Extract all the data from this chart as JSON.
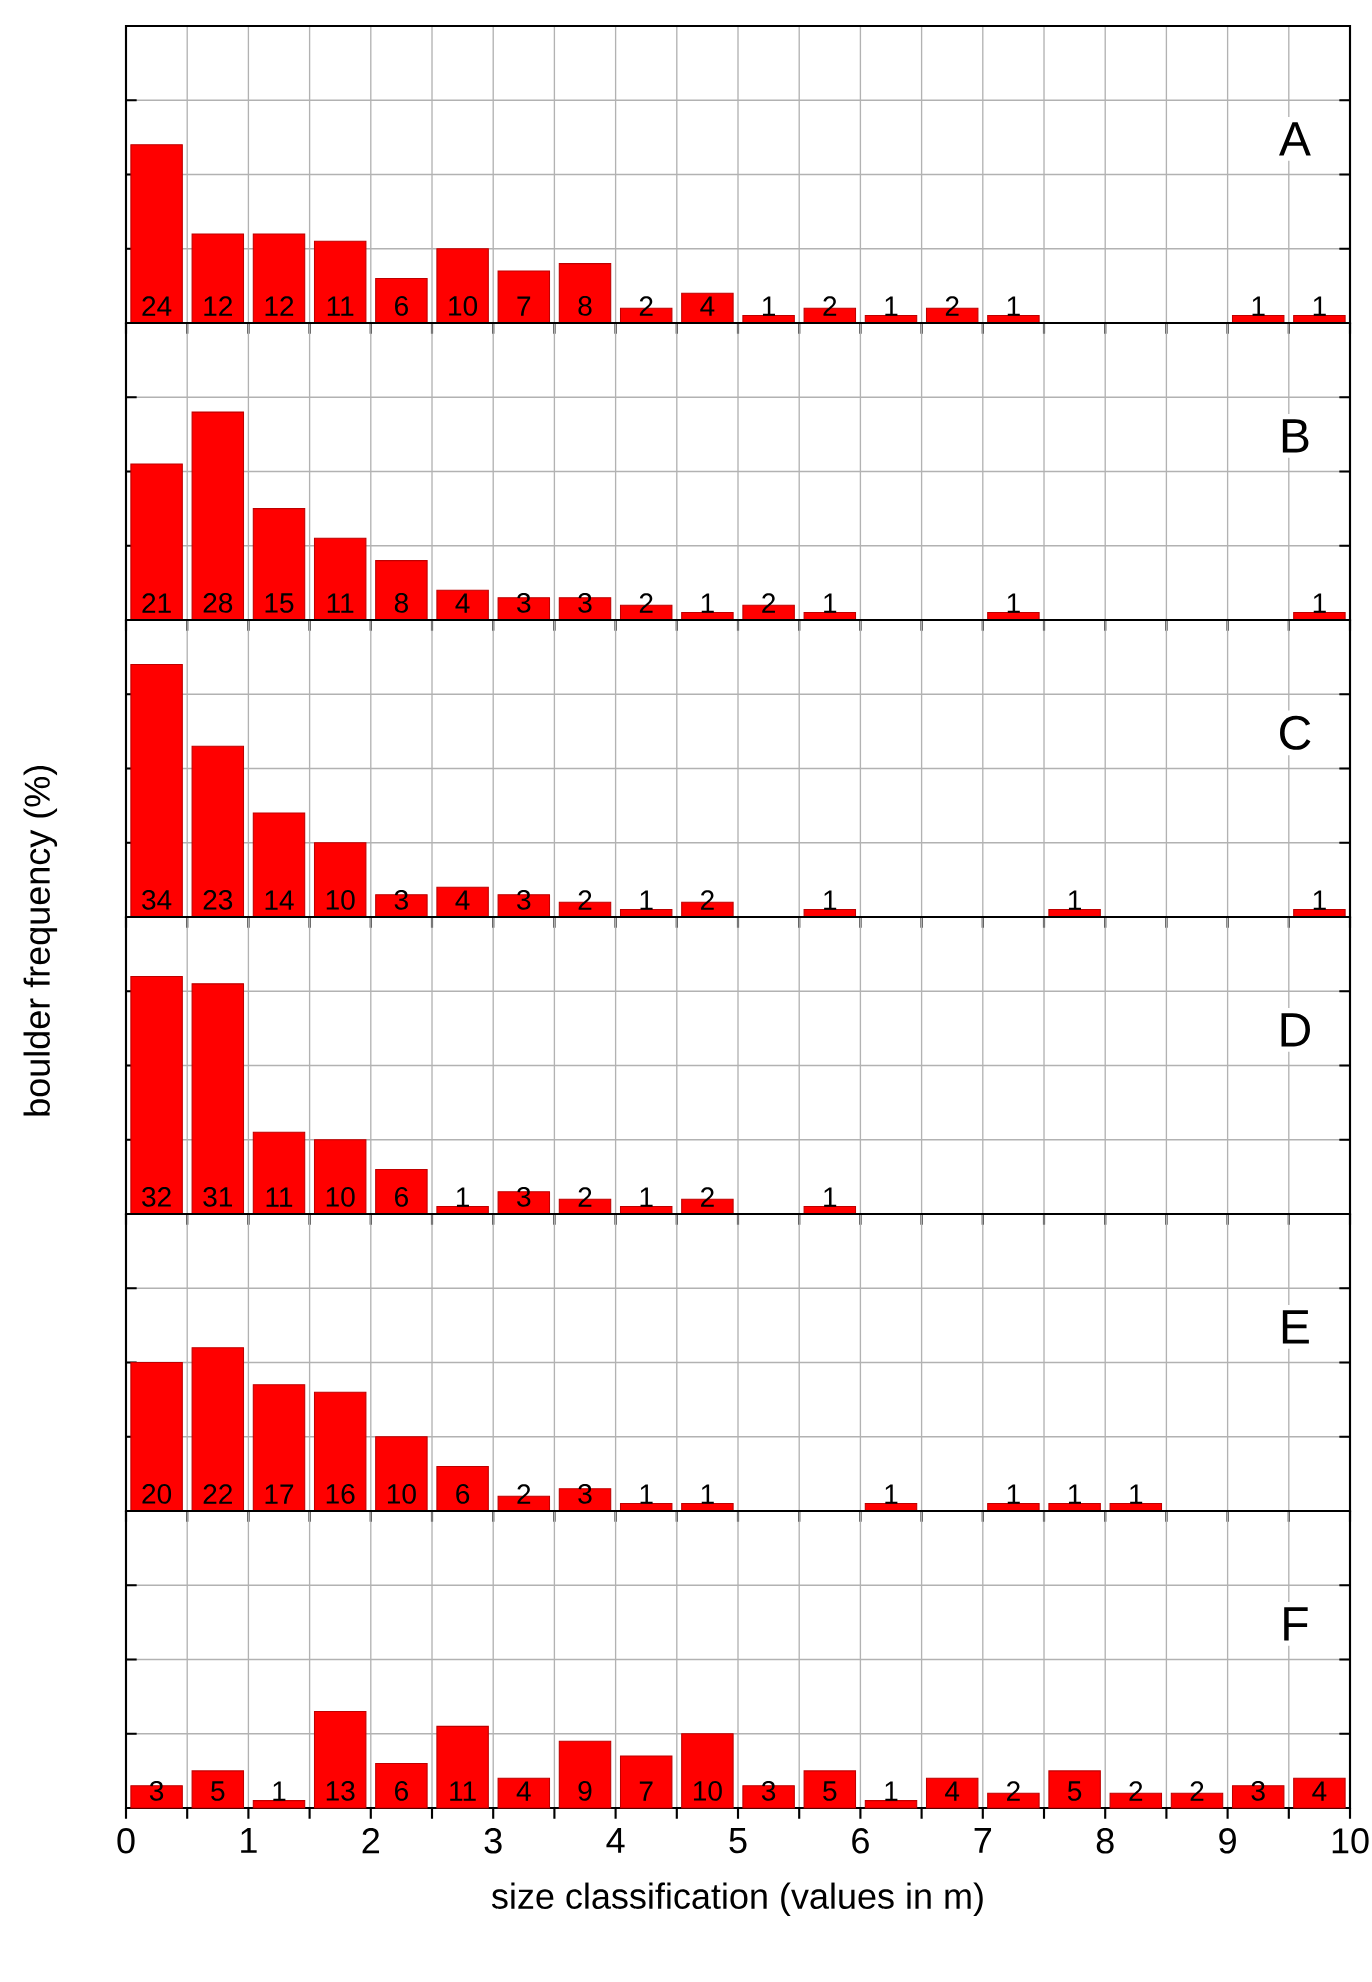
{
  "chart_data": [
    {
      "type": "bar",
      "title": "A",
      "x": [
        0.25,
        0.75,
        1.25,
        1.75,
        2.25,
        2.75,
        3.25,
        3.75,
        4.25,
        4.75,
        5.25,
        5.75,
        6.25,
        6.75,
        7.25,
        7.75,
        8.25,
        8.75,
        9.25,
        9.75
      ],
      "values": [
        24,
        12,
        12,
        11,
        6,
        10,
        7,
        8,
        2,
        4,
        1,
        2,
        1,
        2,
        1,
        null,
        null,
        null,
        1,
        1
      ],
      "color": "#ff0000",
      "data_labels": true,
      "xlim": [
        0,
        10
      ],
      "ylim": [
        0,
        40
      ],
      "xticks": [
        0,
        {
          "value": 0.5,
          "label": null
        },
        1,
        {
          "value": 1.5,
          "label": null
        },
        2,
        {
          "value": 2.5,
          "label": null
        },
        3,
        {
          "value": 3.5,
          "label": null
        },
        4,
        {
          "value": 4.5,
          "label": null
        },
        5,
        {
          "value": 5.5,
          "label": null
        },
        6,
        {
          "value": 6.5,
          "label": null
        },
        7,
        {
          "value": 7.5,
          "label": null
        },
        8,
        {
          "value": 8.5,
          "label": null
        },
        9,
        {
          "value": 9.5,
          "label": null
        },
        10
      ],
      "yticks": [
        {
          "value": 10,
          "label": null
        },
        {
          "value": 20,
          "label": null
        },
        {
          "value": 30,
          "label": null
        }
      ],
      "grid": true,
      "tick_labels": false
    },
    {
      "type": "bar",
      "title": "B",
      "x": [
        0.25,
        0.75,
        1.25,
        1.75,
        2.25,
        2.75,
        3.25,
        3.75,
        4.25,
        4.75,
        5.25,
        5.75,
        6.25,
        6.75,
        7.25,
        7.75,
        8.25,
        8.75,
        9.25,
        9.75
      ],
      "values": [
        21,
        28,
        15,
        11,
        8,
        4,
        3,
        3,
        2,
        1,
        2,
        1,
        null,
        null,
        1,
        null,
        null,
        null,
        null,
        1
      ],
      "color": "#ff0000",
      "data_labels": true,
      "xlim": [
        0,
        10
      ],
      "ylim": [
        0,
        40
      ],
      "xticks": [
        0,
        {
          "value": 0.5,
          "label": null
        },
        1,
        {
          "value": 1.5,
          "label": null
        },
        2,
        {
          "value": 2.5,
          "label": null
        },
        3,
        {
          "value": 3.5,
          "label": null
        },
        4,
        {
          "value": 4.5,
          "label": null
        },
        5,
        {
          "value": 5.5,
          "label": null
        },
        6,
        {
          "value": 6.5,
          "label": null
        },
        7,
        {
          "value": 7.5,
          "label": null
        },
        8,
        {
          "value": 8.5,
          "label": null
        },
        9,
        {
          "value": 9.5,
          "label": null
        },
        10
      ],
      "yticks": [
        {
          "value": 10,
          "label": null
        },
        {
          "value": 20,
          "label": null
        },
        {
          "value": 30,
          "label": null
        }
      ],
      "grid": true,
      "tick_labels": false
    },
    {
      "type": "bar",
      "title": "C",
      "ylabel": "boulder frequency (%)",
      "x": [
        0.25,
        0.75,
        1.25,
        1.75,
        2.25,
        2.75,
        3.25,
        3.75,
        4.25,
        4.75,
        5.25,
        5.75,
        6.25,
        6.75,
        7.25,
        7.75,
        8.25,
        8.75,
        9.25,
        9.75
      ],
      "values": [
        34,
        23,
        14,
        10,
        3,
        4,
        3,
        2,
        1,
        2,
        null,
        1,
        null,
        null,
        null,
        1,
        null,
        null,
        null,
        1
      ],
      "color": "#ff0000",
      "data_labels": true,
      "xlim": [
        0,
        10
      ],
      "ylim": [
        0,
        40
      ],
      "xticks": [
        0,
        {
          "value": 0.5,
          "label": null
        },
        1,
        {
          "value": 1.5,
          "label": null
        },
        2,
        {
          "value": 2.5,
          "label": null
        },
        3,
        {
          "value": 3.5,
          "label": null
        },
        4,
        {
          "value": 4.5,
          "label": null
        },
        5,
        {
          "value": 5.5,
          "label": null
        },
        6,
        {
          "value": 6.5,
          "label": null
        },
        7,
        {
          "value": 7.5,
          "label": null
        },
        8,
        {
          "value": 8.5,
          "label": null
        },
        9,
        {
          "value": 9.5,
          "label": null
        },
        10
      ],
      "yticks": [
        {
          "value": 10,
          "label": null
        },
        {
          "value": 20,
          "label": null
        },
        {
          "value": 30,
          "label": null
        }
      ],
      "grid": true,
      "tick_labels": false
    },
    {
      "type": "bar",
      "title": "D",
      "x": [
        0.25,
        0.75,
        1.25,
        1.75,
        2.25,
        2.75,
        3.25,
        3.75,
        4.25,
        4.75,
        5.25,
        5.75
      ],
      "values": [
        32,
        31,
        11,
        10,
        6,
        1,
        3,
        2,
        1,
        2,
        null,
        1
      ],
      "color": "#ff0000",
      "data_labels": true,
      "xlim": [
        0,
        10
      ],
      "ylim": [
        0,
        40
      ],
      "xticks": [
        0,
        {
          "value": 0.5,
          "label": null
        },
        1,
        {
          "value": 1.5,
          "label": null
        },
        2,
        {
          "value": 2.5,
          "label": null
        },
        3,
        {
          "value": 3.5,
          "label": null
        },
        4,
        {
          "value": 4.5,
          "label": null
        },
        5,
        {
          "value": 5.5,
          "label": null
        },
        6,
        {
          "value": 6.5,
          "label": null
        },
        7,
        {
          "value": 7.5,
          "label": null
        },
        8,
        {
          "value": 8.5,
          "label": null
        },
        9,
        {
          "value": 9.5,
          "label": null
        },
        10
      ],
      "yticks": [
        {
          "value": 10,
          "label": null
        },
        {
          "value": 20,
          "label": null
        },
        {
          "value": 30,
          "label": null
        }
      ],
      "grid": true,
      "tick_labels": false
    },
    {
      "type": "bar",
      "title": "E",
      "x": [
        0.25,
        0.75,
        1.25,
        1.75,
        2.25,
        2.75,
        3.25,
        3.75,
        4.25,
        4.75,
        5.25,
        5.75,
        6.25,
        6.75,
        7.25,
        7.75,
        8.25
      ],
      "values": [
        20,
        22,
        17,
        16,
        10,
        6,
        2,
        3,
        1,
        1,
        null,
        null,
        1,
        null,
        1,
        1,
        1
      ],
      "color": "#ff0000",
      "data_labels": true,
      "xlim": [
        0,
        10
      ],
      "ylim": [
        0,
        40
      ],
      "xticks": [
        0,
        {
          "value": 0.5,
          "label": null
        },
        1,
        {
          "value": 1.5,
          "label": null
        },
        2,
        {
          "value": 2.5,
          "label": null
        },
        3,
        {
          "value": 3.5,
          "label": null
        },
        4,
        {
          "value": 4.5,
          "label": null
        },
        5,
        {
          "value": 5.5,
          "label": null
        },
        6,
        {
          "value": 6.5,
          "label": null
        },
        7,
        {
          "value": 7.5,
          "label": null
        },
        8,
        {
          "value": 8.5,
          "label": null
        },
        9,
        {
          "value": 9.5,
          "label": null
        },
        10
      ],
      "yticks": [
        {
          "value": 10,
          "label": null
        },
        {
          "value": 20,
          "label": null
        },
        {
          "value": 30,
          "label": null
        }
      ],
      "grid": true,
      "tick_labels": false
    },
    {
      "type": "bar",
      "title": "F",
      "xlabel": "size classification (values in m)",
      "x": [
        0.25,
        0.75,
        1.25,
        1.75,
        2.25,
        2.75,
        3.25,
        3.75,
        4.25,
        4.75,
        5.25,
        5.75,
        6.25,
        6.75,
        7.25,
        7.75,
        8.25,
        8.75,
        9.25,
        9.75
      ],
      "values": [
        3,
        5,
        1,
        13,
        6,
        11,
        4,
        9,
        7,
        10,
        3,
        5,
        1,
        4,
        2,
        5,
        2,
        2,
        3,
        4
      ],
      "color": "#ff0000",
      "data_labels": true,
      "xlim": [
        0,
        10
      ],
      "ylim": [
        0,
        40
      ],
      "xticks": [
        0,
        {
          "value": 0.5,
          "label": null
        },
        1,
        {
          "value": 1.5,
          "label": null
        },
        2,
        {
          "value": 2.5,
          "label": null
        },
        3,
        {
          "value": 3.5,
          "label": null
        },
        4,
        {
          "value": 4.5,
          "label": null
        },
        5,
        {
          "value": 5.5,
          "label": null
        },
        6,
        {
          "value": 6.5,
          "label": null
        },
        7,
        {
          "value": 7.5,
          "label": null
        },
        8,
        {
          "value": 8.5,
          "label": null
        },
        9,
        {
          "value": 9.5,
          "label": null
        },
        10
      ],
      "yticks": [
        {
          "value": 10,
          "label": null
        },
        {
          "value": 20,
          "label": null
        },
        {
          "value": 30,
          "label": null
        }
      ],
      "grid": true,
      "tick_labels": "x"
    }
  ]
}
